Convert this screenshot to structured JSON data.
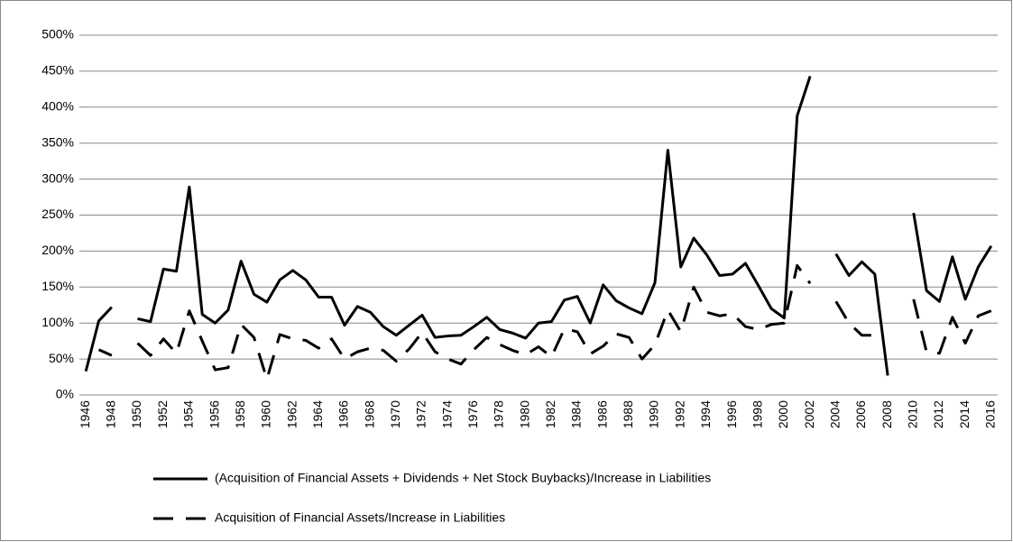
{
  "chart_data": {
    "type": "line",
    "categories": [
      "1946",
      null,
      "1948",
      null,
      "1950",
      null,
      "1952",
      null,
      "1954",
      null,
      "1956",
      null,
      "1958",
      null,
      "1960",
      null,
      "1962",
      null,
      "1964",
      null,
      "1966",
      null,
      "1968",
      null,
      "1970",
      null,
      "1972",
      null,
      "1974",
      null,
      "1976",
      null,
      "1978",
      null,
      "1980",
      null,
      "1982",
      null,
      "1984",
      null,
      "1986",
      null,
      "1988",
      null,
      "1990",
      null,
      "1992",
      null,
      "1994",
      null,
      "1996",
      null,
      "1998",
      null,
      "2000",
      null,
      "2002",
      null,
      "2004",
      null,
      "2006",
      null,
      "2008",
      null,
      "2010",
      null,
      "2012",
      null,
      "2014",
      null,
      "2016"
    ],
    "series": [
      {
        "name": "(Acquisition of Financial Assets + Dividends + Net Stock Buybacks)/Increase in Liabilities",
        "color": "#000000",
        "style": "solid",
        "values": [
          33,
          103,
          122,
          null,
          106,
          102,
          175,
          172,
          289,
          112,
          100,
          118,
          186,
          140,
          129,
          160,
          173,
          160,
          136,
          136,
          97,
          123,
          115,
          95,
          83,
          97,
          111,
          80,
          82,
          83,
          95,
          108,
          91,
          86,
          79,
          100,
          102,
          132,
          137,
          100,
          153,
          131,
          121,
          113,
          156,
          340,
          178,
          218,
          195,
          166,
          168,
          183,
          152,
          120,
          107,
          388,
          443,
          null,
          196,
          166,
          185,
          168,
          27,
          null,
          253,
          145,
          130,
          192,
          133,
          178,
          207
        ]
      },
      {
        "name": "Acquisition of Financial Assets/Increase in Liabilities",
        "color": "#000000",
        "style": "dashed",
        "values": [
          null,
          63,
          55,
          null,
          72,
          55,
          78,
          58,
          117,
          75,
          35,
          38,
          98,
          80,
          22,
          84,
          78,
          76,
          65,
          78,
          50,
          60,
          65,
          62,
          47,
          64,
          87,
          60,
          50,
          43,
          63,
          80,
          70,
          62,
          56,
          67,
          53,
          92,
          88,
          57,
          68,
          85,
          80,
          50,
          70,
          118,
          88,
          150,
          115,
          110,
          113,
          95,
          91,
          98,
          100,
          180,
          155,
          null,
          130,
          100,
          83,
          83,
          null,
          null,
          133,
          60,
          58,
          108,
          72,
          110,
          117
        ]
      }
    ],
    "ylim": [
      0,
      500
    ],
    "yticks": [
      {
        "value": 0,
        "label": "0%"
      },
      {
        "value": 50,
        "label": "50%"
      },
      {
        "value": 100,
        "label": "100%"
      },
      {
        "value": 150,
        "label": "150%"
      },
      {
        "value": 200,
        "label": "200%"
      },
      {
        "value": 250,
        "label": "250%"
      },
      {
        "value": 300,
        "label": "300%"
      },
      {
        "value": 350,
        "label": "350%"
      },
      {
        "value": 400,
        "label": "400%"
      },
      {
        "value": 450,
        "label": "450%"
      },
      {
        "value": 500,
        "label": "500%"
      }
    ],
    "grid": true
  }
}
